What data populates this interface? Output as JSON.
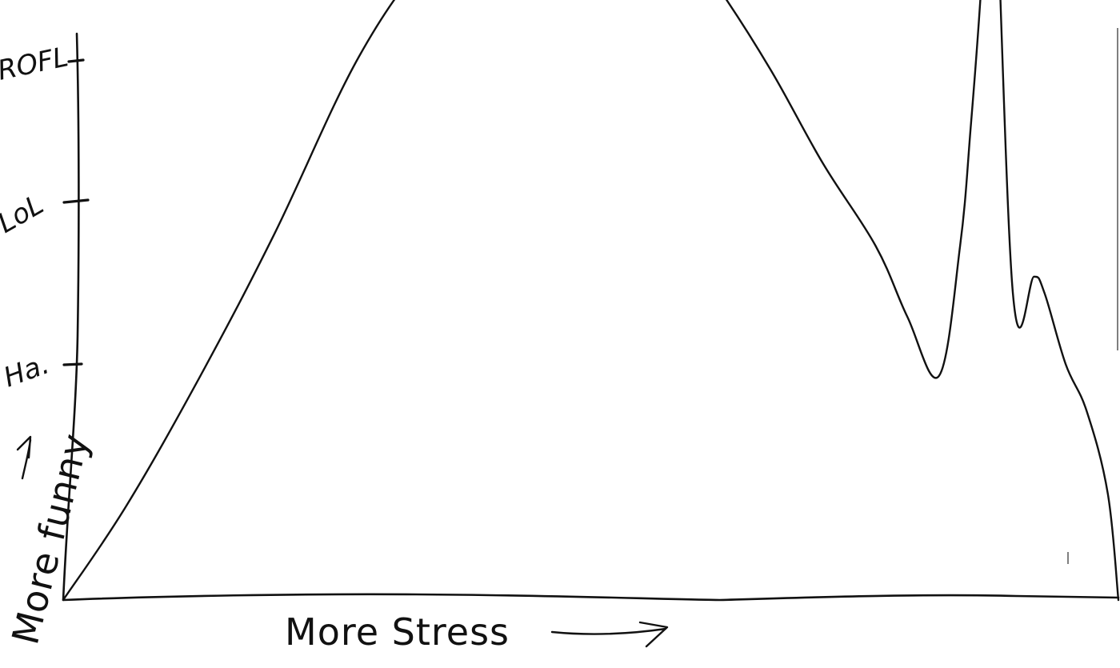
{
  "chart_data": {
    "type": "line",
    "title": "",
    "xlabel": "More Stress",
    "ylabel": "More funny",
    "y_tick_labels": [
      "Ha.",
      "LoL",
      "ROFL"
    ],
    "y_tick_values": [
      1,
      2,
      3
    ],
    "ylim": [
      0,
      3.3
    ],
    "series": [
      {
        "x": [
          0,
          0.06,
          0.13,
          0.2,
          0.28,
          0.35,
          0.42,
          0.47,
          0.52,
          0.57,
          0.62,
          0.67,
          0.72,
          0.77,
          0.8,
          0.83,
          0.85,
          0.86,
          0.87,
          0.88,
          0.9,
          0.92,
          0.93,
          0.95,
          0.97,
          0.99,
          1.0
        ],
        "y": [
          0,
          0.4,
          0.95,
          1.55,
          2.3,
          2.75,
          3.05,
          3.15,
          3.1,
          2.9,
          2.6,
          2.25,
          1.85,
          1.5,
          1.2,
          0.95,
          1.5,
          2.0,
          2.6,
          3.4,
          1.3,
          1.37,
          1.3,
          1.0,
          0.8,
          0.45,
          0.0
        ]
      }
    ],
    "grid": false,
    "legend": "none"
  }
}
